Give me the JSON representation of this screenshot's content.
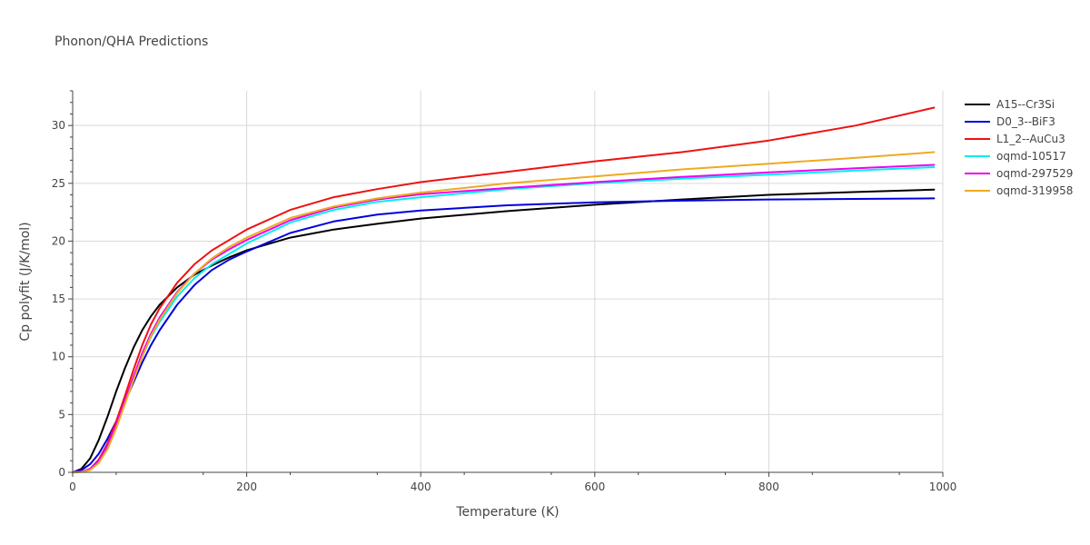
{
  "chart_data": {
    "type": "line",
    "title": "Phonon/QHA Predictions",
    "xlabel": "Temperature (K)",
    "ylabel": "Cp polyfit (J/K/mol)",
    "xlim": [
      0,
      1000
    ],
    "ylim": [
      0,
      33
    ],
    "xticks": [
      0,
      200,
      400,
      600,
      800,
      1000
    ],
    "yticks": [
      0,
      5,
      10,
      15,
      20,
      25,
      30
    ],
    "grid": true,
    "legend_position": "top-right",
    "series": [
      {
        "name": "A15--Cr3Si",
        "color": "#000000",
        "points": [
          [
            0,
            0
          ],
          [
            10,
            0.3
          ],
          [
            20,
            1.2
          ],
          [
            30,
            2.8
          ],
          [
            40,
            4.8
          ],
          [
            50,
            7.0
          ],
          [
            60,
            9.0
          ],
          [
            70,
            10.8
          ],
          [
            80,
            12.3
          ],
          [
            90,
            13.5
          ],
          [
            100,
            14.5
          ],
          [
            120,
            16.0
          ],
          [
            140,
            17.1
          ],
          [
            160,
            17.9
          ],
          [
            180,
            18.6
          ],
          [
            200,
            19.2
          ],
          [
            250,
            20.3
          ],
          [
            300,
            21.0
          ],
          [
            350,
            21.5
          ],
          [
            400,
            21.95
          ],
          [
            500,
            22.6
          ],
          [
            600,
            23.15
          ],
          [
            700,
            23.6
          ],
          [
            800,
            24.0
          ],
          [
            900,
            24.25
          ],
          [
            990,
            24.45
          ]
        ]
      },
      {
        "name": "D0_3--BiF3",
        "color": "#0000dd",
        "points": [
          [
            0,
            0
          ],
          [
            10,
            0.2
          ],
          [
            20,
            0.7
          ],
          [
            30,
            1.6
          ],
          [
            40,
            2.9
          ],
          [
            50,
            4.4
          ],
          [
            60,
            6.1
          ],
          [
            70,
            7.8
          ],
          [
            80,
            9.5
          ],
          [
            90,
            11.0
          ],
          [
            100,
            12.3
          ],
          [
            120,
            14.5
          ],
          [
            140,
            16.2
          ],
          [
            160,
            17.5
          ],
          [
            180,
            18.4
          ],
          [
            200,
            19.1
          ],
          [
            250,
            20.7
          ],
          [
            300,
            21.7
          ],
          [
            350,
            22.3
          ],
          [
            400,
            22.65
          ],
          [
            500,
            23.1
          ],
          [
            600,
            23.35
          ],
          [
            700,
            23.5
          ],
          [
            800,
            23.6
          ],
          [
            900,
            23.65
          ],
          [
            990,
            23.7
          ]
        ]
      },
      {
        "name": "L1_2--AuCu3",
        "color": "#ee1111",
        "points": [
          [
            0,
            0
          ],
          [
            10,
            0.05
          ],
          [
            20,
            0.3
          ],
          [
            30,
            1.1
          ],
          [
            40,
            2.5
          ],
          [
            50,
            4.4
          ],
          [
            60,
            6.6
          ],
          [
            70,
            8.9
          ],
          [
            80,
            11.0
          ],
          [
            90,
            12.8
          ],
          [
            100,
            14.2
          ],
          [
            120,
            16.4
          ],
          [
            140,
            18.0
          ],
          [
            160,
            19.2
          ],
          [
            180,
            20.1
          ],
          [
            200,
            21.0
          ],
          [
            250,
            22.7
          ],
          [
            300,
            23.8
          ],
          [
            350,
            24.5
          ],
          [
            400,
            25.1
          ],
          [
            500,
            26.0
          ],
          [
            600,
            26.9
          ],
          [
            700,
            27.7
          ],
          [
            800,
            28.7
          ],
          [
            900,
            30.0
          ],
          [
            990,
            31.55
          ]
        ]
      },
      {
        "name": "oqmd-10517",
        "color": "#00eeee",
        "points": [
          [
            0,
            0
          ],
          [
            10,
            0.05
          ],
          [
            20,
            0.3
          ],
          [
            30,
            1.0
          ],
          [
            40,
            2.3
          ],
          [
            50,
            4.0
          ],
          [
            60,
            6.0
          ],
          [
            70,
            8.0
          ],
          [
            80,
            10.0
          ],
          [
            90,
            11.7
          ],
          [
            100,
            13.0
          ],
          [
            120,
            15.2
          ],
          [
            140,
            16.8
          ],
          [
            160,
            18.0
          ],
          [
            180,
            18.9
          ],
          [
            200,
            19.8
          ],
          [
            250,
            21.6
          ],
          [
            300,
            22.7
          ],
          [
            350,
            23.4
          ],
          [
            400,
            23.8
          ],
          [
            500,
            24.5
          ],
          [
            600,
            25.0
          ],
          [
            700,
            25.4
          ],
          [
            800,
            25.75
          ],
          [
            900,
            26.1
          ],
          [
            990,
            26.4
          ]
        ]
      },
      {
        "name": "oqmd-297529",
        "color": "#ee00ee",
        "points": [
          [
            0,
            0
          ],
          [
            10,
            0.05
          ],
          [
            20,
            0.3
          ],
          [
            30,
            1.0
          ],
          [
            40,
            2.3
          ],
          [
            50,
            4.1
          ],
          [
            60,
            6.2
          ],
          [
            70,
            8.3
          ],
          [
            80,
            10.3
          ],
          [
            90,
            12.0
          ],
          [
            100,
            13.4
          ],
          [
            120,
            15.6
          ],
          [
            140,
            17.2
          ],
          [
            160,
            18.4
          ],
          [
            180,
            19.3
          ],
          [
            200,
            20.1
          ],
          [
            250,
            21.8
          ],
          [
            300,
            22.9
          ],
          [
            350,
            23.6
          ],
          [
            400,
            24.05
          ],
          [
            500,
            24.6
          ],
          [
            600,
            25.1
          ],
          [
            700,
            25.55
          ],
          [
            800,
            25.95
          ],
          [
            900,
            26.3
          ],
          [
            990,
            26.6
          ]
        ]
      },
      {
        "name": "oqmd-319958",
        "color": "#eeaa22",
        "points": [
          [
            0,
            0
          ],
          [
            10,
            0.02
          ],
          [
            20,
            0.2
          ],
          [
            30,
            0.8
          ],
          [
            40,
            2.0
          ],
          [
            50,
            3.8
          ],
          [
            60,
            5.9
          ],
          [
            70,
            8.0
          ],
          [
            80,
            10.0
          ],
          [
            90,
            11.8
          ],
          [
            100,
            13.2
          ],
          [
            120,
            15.5
          ],
          [
            140,
            17.2
          ],
          [
            160,
            18.5
          ],
          [
            180,
            19.5
          ],
          [
            200,
            20.3
          ],
          [
            250,
            22.0
          ],
          [
            300,
            23.0
          ],
          [
            350,
            23.7
          ],
          [
            400,
            24.2
          ],
          [
            500,
            25.0
          ],
          [
            600,
            25.6
          ],
          [
            700,
            26.2
          ],
          [
            800,
            26.7
          ],
          [
            900,
            27.2
          ],
          [
            990,
            27.7
          ]
        ]
      }
    ]
  }
}
